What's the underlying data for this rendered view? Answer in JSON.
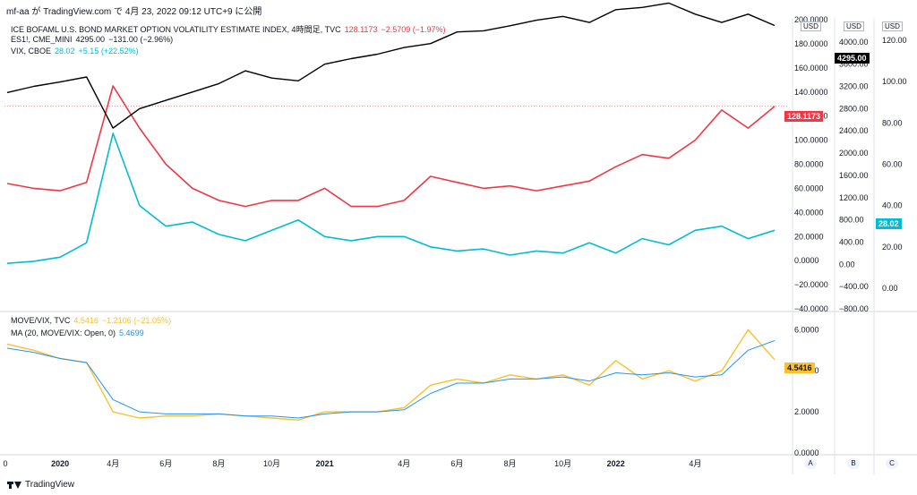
{
  "header": {
    "text": "mf-aa が TradingView.com で 4月 23, 2022 09:12 UTC+9 に公開"
  },
  "legend": {
    "move": {
      "name": "ICE BOFAML U.S. BOND MARKET OPTION VOLATILITY ESTIMATE INDEX, 4時間足, TVC",
      "value": "128.1173",
      "change": "−2.5709 (−1.97%)"
    },
    "es": {
      "name": "ES1!, CME_MINI",
      "value": "4295.00",
      "change": "−131.00 (−2.96%)"
    },
    "vix": {
      "name": "VIX, CBOE",
      "value": "28.02",
      "change": "+5.15 (+22.52%)"
    },
    "ratio": {
      "name": "MOVE/VIX, TVC",
      "value": "4.5416",
      "change": "−1.2106 (−21.05%)"
    },
    "ma": {
      "name": "MA (20, MOVE/VIX: Open, 0)",
      "value": "5.4699"
    }
  },
  "axes": {
    "usd": "USD",
    "move_ticks": [
      "200.0000",
      "180.0000",
      "160.0000",
      "140.0000",
      "120.0000",
      "100.0000",
      "80.0000",
      "60.0000",
      "40.0000",
      "20.0000",
      "0.0000",
      "−20.0000",
      "−40.0000"
    ],
    "es_ticks": [
      "4000.00",
      "3600.00",
      "3200.00",
      "2800.00",
      "2400.00",
      "2000.00",
      "1600.00",
      "1200.00",
      "800.00",
      "400.00",
      "0.00",
      "−400.00",
      "−800.00"
    ],
    "vix_ticks": [
      "120.00",
      "100.00",
      "80.00",
      "60.00",
      "40.00",
      "20.00",
      "0.00"
    ],
    "ratio_ticks": [
      "6.0000",
      "4.0000",
      "2.0000",
      "0.0000"
    ],
    "x_ticks": [
      "0",
      "2020",
      "4月",
      "6月",
      "8月",
      "10月",
      "2021",
      "4月",
      "6月",
      "8月",
      "10月",
      "2022",
      "4月"
    ],
    "scale_buttons": [
      "A",
      "B",
      "C"
    ]
  },
  "badges": {
    "move": "128.1173",
    "es": "4295.00",
    "vix": "28.02",
    "ratio": "4.5416"
  },
  "colors": {
    "move": "#f23645",
    "es": "#000000",
    "vix": "#00bcd4",
    "ratio": "#fbc02d",
    "ma": "#2196f3"
  },
  "footer": {
    "brand": "TradingView"
  },
  "chart_data": [
    {
      "type": "line",
      "title": "",
      "x": [
        "2019-11",
        "2019-12",
        "2020-01",
        "2020-02",
        "2020-03",
        "2020-04",
        "2020-05",
        "2020-06",
        "2020-07",
        "2020-08",
        "2020-09",
        "2020-10",
        "2020-11",
        "2020-12",
        "2021-01",
        "2021-02",
        "2021-03",
        "2021-04",
        "2021-05",
        "2021-06",
        "2021-07",
        "2021-08",
        "2021-09",
        "2021-10",
        "2021-11",
        "2021-12",
        "2022-01",
        "2022-02",
        "2022-03",
        "2022-04"
      ],
      "series": [
        {
          "name": "ICE BOFAML U.S. BOND MARKET OPTION VOLATILITY ESTIMATE INDEX",
          "axis": "left",
          "values": [
            64,
            60,
            58,
            65,
            145,
            110,
            80,
            60,
            50,
            45,
            50,
            50,
            60,
            45,
            45,
            50,
            70,
            65,
            60,
            62,
            58,
            62,
            66,
            78,
            88,
            85,
            100,
            125,
            110,
            128
          ]
        },
        {
          "name": "ES1!",
          "axis": "middle",
          "values": [
            3090,
            3200,
            3280,
            3370,
            2450,
            2800,
            2950,
            3100,
            3250,
            3480,
            3350,
            3300,
            3600,
            3700,
            3780,
            3900,
            3970,
            4180,
            4200,
            4290,
            4390,
            4460,
            4350,
            4580,
            4620,
            4700,
            4500,
            4350,
            4500,
            4295
          ]
        },
        {
          "name": "VIX",
          "axis": "right",
          "values": [
            12,
            13,
            15,
            22,
            75,
            40,
            30,
            32,
            26,
            23,
            28,
            33,
            25,
            23,
            25,
            25,
            20,
            18,
            19,
            16,
            18,
            17,
            22,
            17,
            24,
            21,
            28,
            30,
            24,
            28
          ]
        }
      ],
      "ylim_left": [
        -40,
        200
      ],
      "ylim_middle": [
        -800,
        4400
      ],
      "ylim_right": [
        -10,
        130
      ]
    },
    {
      "type": "line",
      "title": "",
      "x": [
        "2019-11",
        "2019-12",
        "2020-01",
        "2020-02",
        "2020-03",
        "2020-04",
        "2020-05",
        "2020-06",
        "2020-07",
        "2020-08",
        "2020-09",
        "2020-10",
        "2020-11",
        "2020-12",
        "2021-01",
        "2021-02",
        "2021-03",
        "2021-04",
        "2021-05",
        "2021-06",
        "2021-07",
        "2021-08",
        "2021-09",
        "2021-10",
        "2021-11",
        "2021-12",
        "2022-01",
        "2022-02",
        "2022-03",
        "2022-04"
      ],
      "series": [
        {
          "name": "MOVE/VIX",
          "values": [
            5.3,
            5.0,
            4.6,
            4.4,
            2.0,
            1.7,
            1.8,
            1.8,
            1.9,
            1.8,
            1.7,
            1.6,
            2.0,
            2.0,
            2.0,
            2.2,
            3.3,
            3.6,
            3.4,
            3.8,
            3.6,
            3.8,
            3.3,
            4.5,
            3.6,
            4.0,
            3.5,
            4.0,
            6.0,
            4.54
          ]
        },
        {
          "name": "MA (20, MOVE/VIX: Open, 0)",
          "values": [
            5.1,
            4.9,
            4.6,
            4.4,
            2.6,
            2.0,
            1.9,
            1.9,
            1.9,
            1.8,
            1.8,
            1.7,
            1.9,
            2.0,
            2.0,
            2.1,
            2.9,
            3.4,
            3.4,
            3.6,
            3.6,
            3.7,
            3.5,
            3.9,
            3.8,
            3.9,
            3.7,
            3.8,
            5.0,
            5.47
          ]
        }
      ],
      "ylim": [
        0,
        6.8
      ]
    }
  ]
}
